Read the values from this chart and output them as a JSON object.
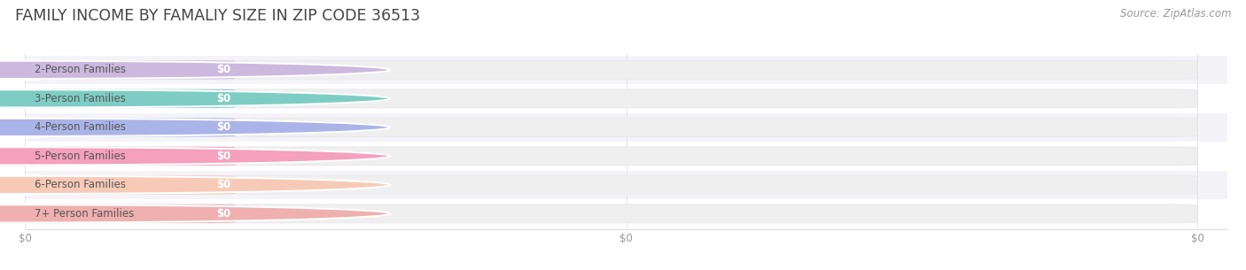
{
  "title": "FAMILY INCOME BY FAMALIY SIZE IN ZIP CODE 36513",
  "source": "Source: ZipAtlas.com",
  "categories": [
    "2-Person Families",
    "3-Person Families",
    "4-Person Families",
    "5-Person Families",
    "6-Person Families",
    "7+ Person Families"
  ],
  "values": [
    0,
    0,
    0,
    0,
    0,
    0
  ],
  "bar_colors": [
    "#cdb8de",
    "#7ecdc5",
    "#aab4e8",
    "#f5a0bc",
    "#f7cab8",
    "#f0b0b0"
  ],
  "bg_color": "#ffffff",
  "row_bg_even": "#f4f4f8",
  "row_bg_odd": "#ffffff",
  "bar_bg_color": "#efefef",
  "title_fontsize": 12.5,
  "source_fontsize": 8.5,
  "label_fontsize": 8.5,
  "value_label": "$0",
  "bar_bg_edge": "#e8e8ee",
  "label_color": "#555555",
  "value_text_color": "#ffffff",
  "xtick_color": "#999999",
  "source_color": "#999999",
  "title_color": "#444444",
  "grid_color": "#e0e0e0"
}
